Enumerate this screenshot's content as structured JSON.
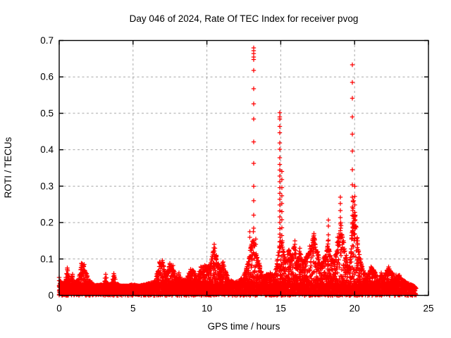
{
  "chart_data": {
    "type": "scatter",
    "title": "Day 046 of 2024, Rate Of TEC Index for receiver pvog",
    "xlabel": "GPS time / hours",
    "ylabel": "ROTI / TECUs",
    "xlim": [
      0,
      25
    ],
    "ylim": [
      0,
      0.7
    ],
    "xtick_labels": [
      "0",
      "5",
      "10",
      "15",
      "20",
      "25"
    ],
    "xtick_values": [
      0,
      5,
      10,
      15,
      20,
      25
    ],
    "ytick_labels": [
      "0",
      "0.1",
      "0.2",
      "0.3",
      "0.4",
      "0.5",
      "0.6",
      "0.7"
    ],
    "ytick_values": [
      0,
      0.1,
      0.2,
      0.3,
      0.4,
      0.5,
      0.6,
      0.7
    ],
    "grid": true,
    "legend": "none",
    "marker": "plus",
    "marker_color": "#ff0000",
    "grid_color": "#a8a8a8",
    "border_color": "#000000",
    "background_color": "#ffffff",
    "points_seed": 20240046,
    "base_band": 0.025,
    "envelope": [
      [
        0.0,
        0.05
      ],
      [
        0.2,
        0.035
      ],
      [
        0.4,
        0.04
      ],
      [
        0.55,
        0.075
      ],
      [
        0.7,
        0.045
      ],
      [
        0.9,
        0.058
      ],
      [
        1.0,
        0.035
      ],
      [
        1.3,
        0.045
      ],
      [
        1.5,
        0.088
      ],
      [
        1.7,
        0.085
      ],
      [
        1.9,
        0.052
      ],
      [
        2.1,
        0.04
      ],
      [
        2.4,
        0.028
      ],
      [
        2.7,
        0.028
      ],
      [
        3.0,
        0.032
      ],
      [
        3.15,
        0.058
      ],
      [
        3.3,
        0.032
      ],
      [
        3.5,
        0.03
      ],
      [
        3.7,
        0.06
      ],
      [
        3.9,
        0.032
      ],
      [
        4.2,
        0.026
      ],
      [
        4.6,
        0.026
      ],
      [
        5.0,
        0.03
      ],
      [
        5.4,
        0.026
      ],
      [
        5.8,
        0.03
      ],
      [
        6.2,
        0.035
      ],
      [
        6.5,
        0.042
      ],
      [
        6.8,
        0.092
      ],
      [
        7.0,
        0.096
      ],
      [
        7.2,
        0.055
      ],
      [
        7.5,
        0.088
      ],
      [
        7.7,
        0.082
      ],
      [
        7.9,
        0.05
      ],
      [
        8.1,
        0.062
      ],
      [
        8.3,
        0.042
      ],
      [
        8.6,
        0.048
      ],
      [
        8.9,
        0.072
      ],
      [
        9.1,
        0.068
      ],
      [
        9.35,
        0.05
      ],
      [
        9.6,
        0.078
      ],
      [
        9.85,
        0.082
      ],
      [
        10.1,
        0.078
      ],
      [
        10.3,
        0.1
      ],
      [
        10.5,
        0.14
      ],
      [
        10.65,
        0.11
      ],
      [
        10.85,
        0.075
      ],
      [
        11.1,
        0.092
      ],
      [
        11.3,
        0.062
      ],
      [
        11.6,
        0.042
      ],
      [
        11.9,
        0.036
      ],
      [
        12.2,
        0.042
      ],
      [
        12.5,
        0.055
      ],
      [
        12.75,
        0.085
      ],
      [
        12.95,
        0.13
      ],
      [
        13.15,
        0.175
      ],
      [
        13.35,
        0.11
      ],
      [
        13.55,
        0.088
      ],
      [
        13.8,
        0.052
      ],
      [
        14.05,
        0.058
      ],
      [
        14.3,
        0.062
      ],
      [
        14.55,
        0.055
      ],
      [
        14.75,
        0.095
      ],
      [
        14.95,
        0.16
      ],
      [
        15.1,
        0.15
      ],
      [
        15.3,
        0.105
      ],
      [
        15.55,
        0.125
      ],
      [
        15.75,
        0.105
      ],
      [
        15.95,
        0.15
      ],
      [
        16.1,
        0.085
      ],
      [
        16.3,
        0.13
      ],
      [
        16.5,
        0.092
      ],
      [
        16.7,
        0.105
      ],
      [
        16.95,
        0.135
      ],
      [
        17.25,
        0.165
      ],
      [
        17.5,
        0.12
      ],
      [
        17.7,
        0.085
      ],
      [
        17.95,
        0.105
      ],
      [
        18.2,
        0.15
      ],
      [
        18.45,
        0.1
      ],
      [
        18.65,
        0.095
      ],
      [
        18.85,
        0.16
      ],
      [
        19.05,
        0.2
      ],
      [
        19.25,
        0.15
      ],
      [
        19.45,
        0.11
      ],
      [
        19.6,
        0.075
      ],
      [
        19.75,
        0.12
      ],
      [
        19.9,
        0.26
      ],
      [
        20.05,
        0.22
      ],
      [
        20.2,
        0.15
      ],
      [
        20.4,
        0.1
      ],
      [
        20.6,
        0.068
      ],
      [
        20.85,
        0.052
      ],
      [
        21.1,
        0.078
      ],
      [
        21.3,
        0.07
      ],
      [
        21.55,
        0.052
      ],
      [
        21.8,
        0.062
      ],
      [
        22.0,
        0.056
      ],
      [
        22.3,
        0.078
      ],
      [
        22.55,
        0.062
      ],
      [
        22.8,
        0.056
      ],
      [
        23.05,
        0.055
      ],
      [
        23.3,
        0.042
      ],
      [
        23.55,
        0.036
      ],
      [
        23.8,
        0.03
      ],
      [
        24.0,
        0.026
      ],
      [
        24.15,
        0.02
      ]
    ],
    "spike_columns": [
      {
        "t": 13.17,
        "values": [
          0.68,
          0.672,
          0.664,
          0.655,
          0.648,
          0.618,
          0.568,
          0.526,
          0.484,
          0.422,
          0.363,
          0.3,
          0.26,
          0.22,
          0.185
        ]
      },
      {
        "t": 12.9,
        "values": [
          0.175,
          0.16
        ]
      },
      {
        "t": 13.3,
        "values": [
          0.155,
          0.14
        ]
      },
      {
        "t": 14.93,
        "values": [
          0.502,
          0.49,
          0.484,
          0.464,
          0.447,
          0.419,
          0.401,
          0.378,
          0.36,
          0.344,
          0.328,
          0.312,
          0.296,
          0.28,
          0.264,
          0.248,
          0.232,
          0.216,
          0.2,
          0.184,
          0.168
        ]
      },
      {
        "t": 15.08,
        "values": [
          0.34,
          0.318,
          0.296,
          0.274,
          0.252,
          0.23,
          0.208,
          0.186,
          0.164
        ]
      },
      {
        "t": 16.27,
        "values": [
          0.121,
          0.113
        ]
      },
      {
        "t": 17.25,
        "values": [
          0.17,
          0.146,
          0.131
        ]
      },
      {
        "t": 18.22,
        "values": [
          0.207,
          0.19,
          0.166,
          0.152
        ]
      },
      {
        "t": 19.04,
        "values": [
          0.27,
          0.252,
          0.233,
          0.214,
          0.196,
          0.178,
          0.161
        ]
      },
      {
        "t": 19.85,
        "values": [
          0.633,
          0.585,
          0.541,
          0.49,
          0.443,
          0.396,
          0.345,
          0.304,
          0.27,
          0.243,
          0.219,
          0.196,
          0.176,
          0.158
        ]
      },
      {
        "t": 19.95,
        "values": [
          0.26,
          0.22,
          0.19
        ]
      },
      {
        "t": 20.02,
        "values": [
          0.3,
          0.272,
          0.248,
          0.228,
          0.205,
          0.186,
          0.168
        ]
      }
    ]
  }
}
